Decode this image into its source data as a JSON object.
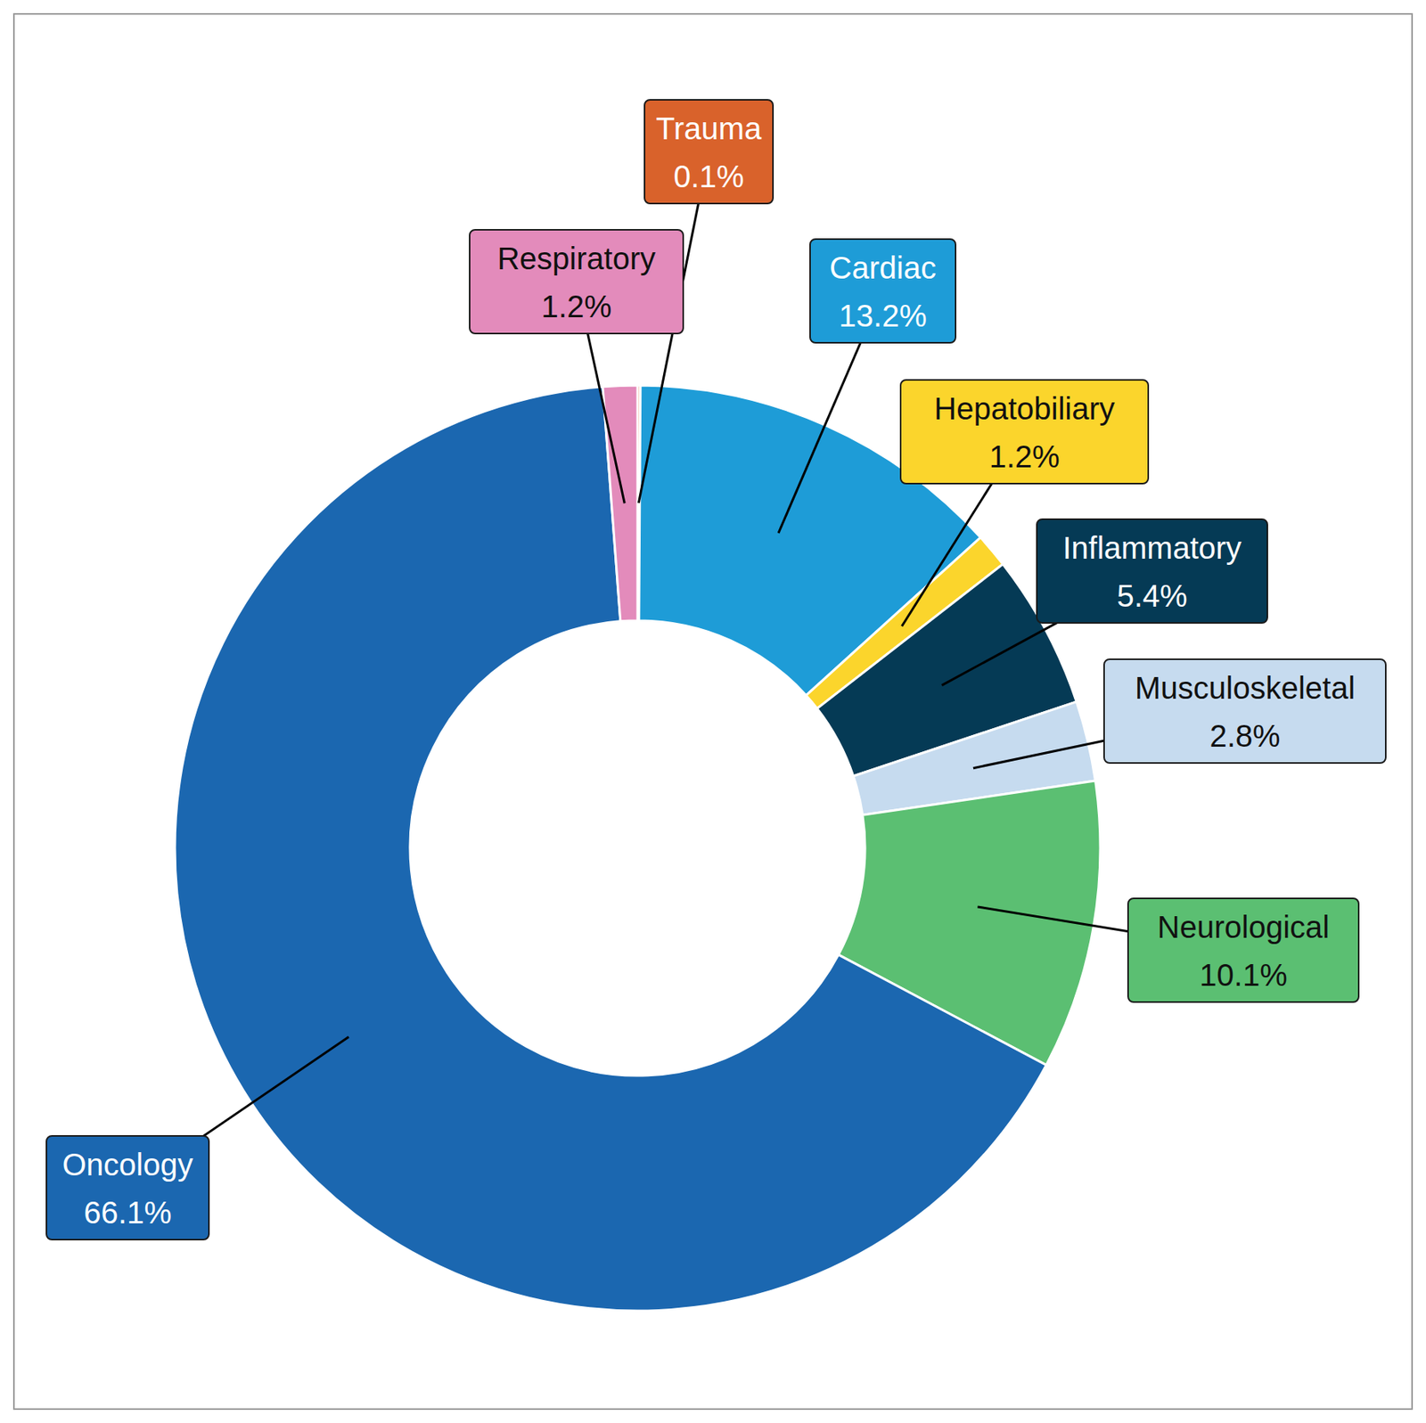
{
  "chart_data": {
    "type": "donut",
    "categories": [
      "Trauma",
      "Cardiac",
      "Hepatobiliary",
      "Inflammatory",
      "Musculoskeletal",
      "Neurological",
      "Oncology",
      "Respiratory"
    ],
    "values": [
      0.1,
      13.2,
      1.2,
      5.4,
      2.8,
      10.1,
      66.1,
      1.2
    ],
    "value_labels": [
      "0.1%",
      "13.2%",
      "1.2%",
      "5.4%",
      "2.8%",
      "10.1%",
      "66.1%",
      "1.2%"
    ],
    "colors": [
      "#d9622b",
      "#1e9cd7",
      "#fbd52c",
      "#053a55",
      "#c6dbef",
      "#5bbf72",
      "#1b67b0",
      "#e38bbb"
    ],
    "data_labels": true
  }
}
